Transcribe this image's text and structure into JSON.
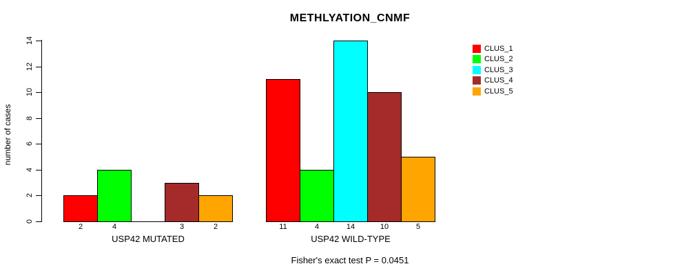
{
  "title": "METHLYATION_CNMF",
  "y_axis": {
    "label": "number of cases",
    "ticks": [
      0,
      2,
      4,
      6,
      8,
      10,
      12,
      14
    ]
  },
  "footer": "Fisher's exact test P = 0.0451",
  "legend": {
    "items": [
      "CLUS_1",
      "CLUS_2",
      "CLUS_3",
      "CLUS_4",
      "CLUS_5"
    ]
  },
  "chart_data": {
    "type": "bar",
    "title": "METHLYATION_CNMF",
    "xlabel": "",
    "ylabel": "number of cases",
    "categories": [
      "USP42 MUTATED",
      "USP42 WILD-TYPE"
    ],
    "series": [
      {
        "name": "CLUS_1",
        "color": "#FF0000",
        "values": [
          2,
          11
        ]
      },
      {
        "name": "CLUS_2",
        "color": "#00FF00",
        "values": [
          4,
          4
        ]
      },
      {
        "name": "CLUS_3",
        "color": "#00FFFF",
        "values": [
          0,
          14
        ]
      },
      {
        "name": "CLUS_4",
        "color": "#A52A2A",
        "values": [
          3,
          10
        ]
      },
      {
        "name": "CLUS_5",
        "color": "#FFA500",
        "values": [
          2,
          5
        ]
      }
    ],
    "ylim": [
      0,
      14
    ],
    "yticks": [
      0,
      2,
      4,
      6,
      8,
      10,
      12,
      14
    ],
    "grid": false,
    "legend_position": "right",
    "bar_value_labels": true,
    "zero_value_labels_hidden": true,
    "annotation": "Fisher's exact test P = 0.0451"
  }
}
